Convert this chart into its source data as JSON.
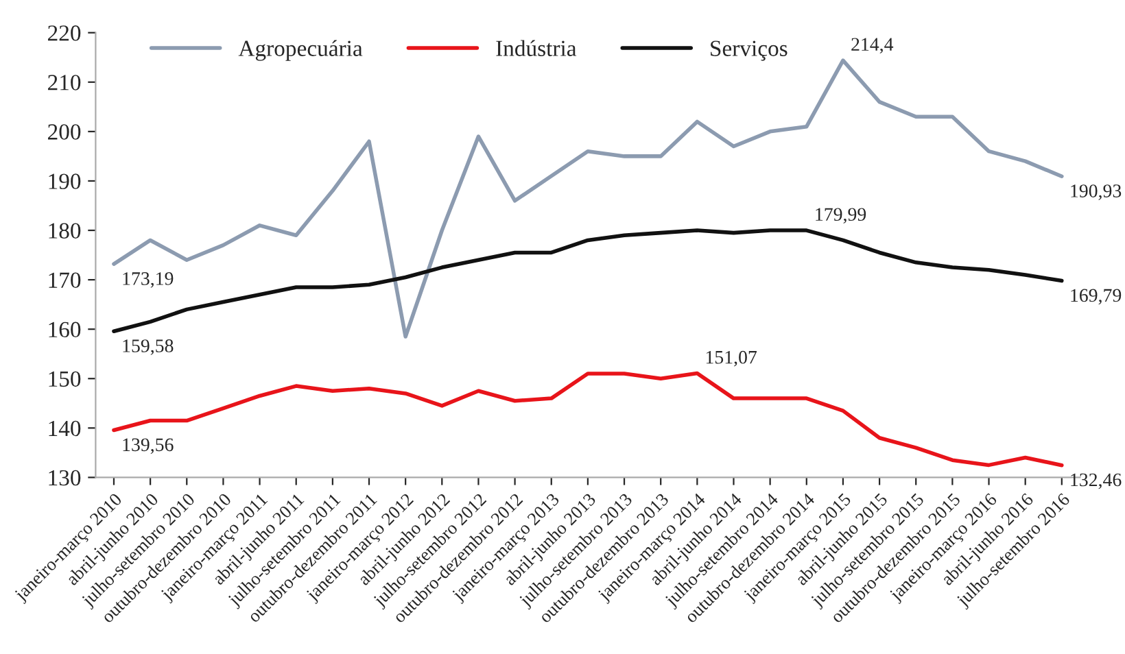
{
  "chart_data": {
    "type": "line",
    "categories": [
      "janeiro-março 2010",
      "abril-junho 2010",
      "julho-setembro 2010",
      "outubro-dezembro 2010",
      "janeiro-março 2011",
      "abril-junho 2011",
      "julho-setembro 2011",
      "outubro-dezembro 2011",
      "janeiro-março 2012",
      "abril-junho 2012",
      "julho-setembro 2012",
      "outubro-dezembro 2012",
      "janeiro-março 2013",
      "abril-junho 2013",
      "julho-setembro 2013",
      "outubro-dezembro 2013",
      "janeiro-março 2014",
      "abril-junho 2014",
      "julho-setembro 2014",
      "outubro-dezembro 2014",
      "janeiro-março 2015",
      "abril-junho 2015",
      "julho-setembro 2015",
      "outubro-dezembro 2015",
      "janeiro-março 2016",
      "abril-junho 2016",
      "julho-setembro 2016"
    ],
    "series": [
      {
        "name": "Agropecuária",
        "color": "#8c9bb0",
        "values": [
          173.19,
          178,
          174,
          177,
          181,
          179,
          188,
          198,
          158.5,
          180,
          199,
          186,
          191,
          196,
          195,
          195,
          202,
          197,
          200,
          201,
          214.4,
          206,
          203,
          203,
          196,
          194,
          190.93
        ],
        "value_labels": [
          "173,19",
          null,
          null,
          null,
          null,
          null,
          null,
          null,
          null,
          null,
          null,
          null,
          null,
          null,
          null,
          null,
          null,
          null,
          null,
          null,
          "214,4",
          null,
          null,
          null,
          null,
          null,
          "190,93"
        ]
      },
      {
        "name": "Indústria",
        "color": "#e8141a",
        "values": [
          139.56,
          141.5,
          141.5,
          144,
          146.5,
          148.5,
          147.5,
          148,
          147,
          144.5,
          147.5,
          145.5,
          146,
          151,
          151,
          150,
          151.07,
          146,
          146,
          146,
          143.5,
          138,
          136,
          133.5,
          132.5,
          134,
          132.46
        ],
        "value_labels": [
          "139,56",
          null,
          null,
          null,
          null,
          null,
          null,
          null,
          null,
          null,
          null,
          null,
          null,
          null,
          null,
          null,
          "151,07",
          null,
          null,
          null,
          null,
          null,
          null,
          null,
          null,
          null,
          "132,46"
        ]
      },
      {
        "name": "Serviços",
        "color": "#111111",
        "values": [
          159.58,
          161.5,
          164,
          165.5,
          167,
          168.5,
          168.5,
          169,
          170.5,
          172.5,
          174,
          175.5,
          175.5,
          178,
          179,
          179.5,
          180,
          179.5,
          180,
          179.99,
          178,
          175.5,
          173.5,
          172.5,
          172,
          171,
          169.79
        ],
        "value_labels": [
          "159,58",
          null,
          null,
          null,
          null,
          null,
          null,
          null,
          null,
          null,
          null,
          null,
          null,
          null,
          null,
          null,
          null,
          null,
          null,
          "179,99",
          null,
          null,
          null,
          null,
          null,
          null,
          "169,79"
        ]
      }
    ],
    "ylim": [
      130,
      220
    ],
    "yticks": [
      130,
      140,
      150,
      160,
      170,
      180,
      190,
      200,
      210,
      220
    ],
    "legend": "top",
    "grid": false,
    "line_style": "solid"
  }
}
